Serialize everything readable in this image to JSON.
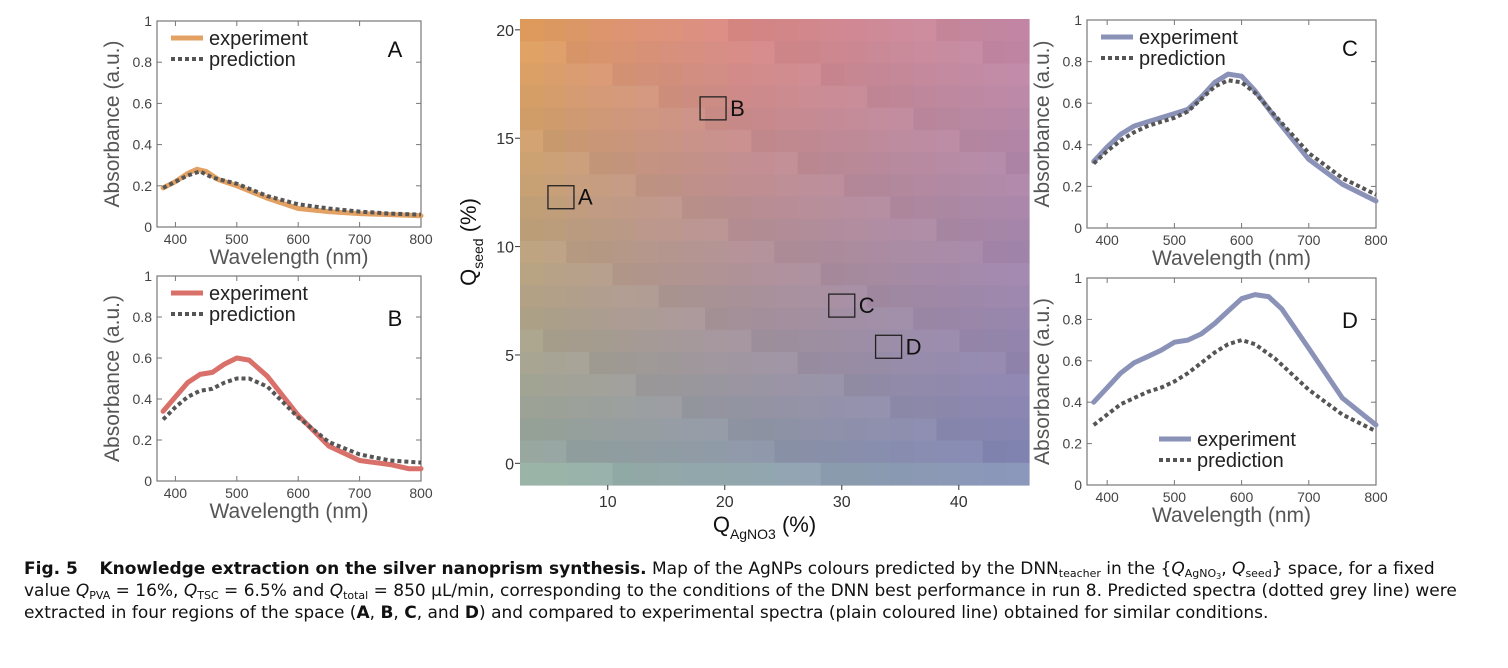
{
  "chart_data": [
    {
      "panel": "A",
      "type": "line",
      "xlabel": "Wavelength (nm)",
      "ylabel": "Absorbance (a.u.)",
      "xlim": [
        370,
        800
      ],
      "ylim": [
        0,
        1
      ],
      "xticks": [
        "400",
        "500",
        "600",
        "700",
        "800"
      ],
      "yticks": [
        "0",
        "0.2",
        "0.4",
        "0.6",
        "0.8",
        "1"
      ],
      "legend": [
        "experiment",
        "prediction"
      ],
      "legend_position": "top-left",
      "series": [
        {
          "name": "experiment",
          "color": "#e3a163",
          "x": [
            380,
            400,
            420,
            435,
            450,
            470,
            500,
            550,
            600,
            650,
            700,
            750,
            800
          ],
          "y": [
            0.19,
            0.22,
            0.26,
            0.28,
            0.27,
            0.23,
            0.2,
            0.14,
            0.09,
            0.075,
            0.065,
            0.06,
            0.055
          ]
        },
        {
          "name": "prediction",
          "color": "#555555",
          "x": [
            380,
            400,
            420,
            440,
            460,
            500,
            550,
            600,
            650,
            700,
            750,
            800
          ],
          "y": [
            0.19,
            0.22,
            0.25,
            0.27,
            0.24,
            0.21,
            0.15,
            0.11,
            0.09,
            0.075,
            0.065,
            0.06
          ]
        }
      ]
    },
    {
      "panel": "B",
      "type": "line",
      "xlabel": "Wavelength (nm)",
      "ylabel": "Absorbance (a.u.)",
      "xlim": [
        370,
        800
      ],
      "ylim": [
        0,
        1
      ],
      "xticks": [
        "400",
        "500",
        "600",
        "700",
        "800"
      ],
      "yticks": [
        "0",
        "0.2",
        "0.4",
        "0.6",
        "0.8",
        "1"
      ],
      "legend": [
        "experiment",
        "prediction"
      ],
      "legend_position": "top-left",
      "series": [
        {
          "name": "experiment",
          "color": "#d9706a",
          "x": [
            380,
            400,
            420,
            440,
            460,
            480,
            500,
            520,
            550,
            600,
            650,
            700,
            750,
            780,
            800
          ],
          "y": [
            0.34,
            0.41,
            0.48,
            0.52,
            0.53,
            0.57,
            0.6,
            0.59,
            0.51,
            0.32,
            0.17,
            0.1,
            0.08,
            0.06,
            0.06
          ]
        },
        {
          "name": "prediction",
          "color": "#555555",
          "x": [
            380,
            400,
            420,
            440,
            460,
            480,
            500,
            520,
            550,
            600,
            650,
            700,
            750,
            800
          ],
          "y": [
            0.3,
            0.36,
            0.41,
            0.44,
            0.45,
            0.48,
            0.5,
            0.5,
            0.46,
            0.31,
            0.19,
            0.13,
            0.1,
            0.09
          ]
        }
      ]
    },
    {
      "panel": "C",
      "type": "line",
      "xlabel": "Wavelength (nm)",
      "ylabel": "Absorbance (a.u.)",
      "xlim": [
        370,
        800
      ],
      "ylim": [
        0,
        1
      ],
      "xticks": [
        "400",
        "500",
        "600",
        "700",
        "800"
      ],
      "yticks": [
        "0",
        "0.2",
        "0.4",
        "0.6",
        "0.8",
        "1"
      ],
      "legend": [
        "experiment",
        "prediction"
      ],
      "legend_position": "top-left",
      "series": [
        {
          "name": "experiment",
          "color": "#8b92b8",
          "x": [
            380,
            400,
            420,
            440,
            460,
            480,
            500,
            520,
            540,
            560,
            580,
            600,
            620,
            650,
            700,
            750,
            800
          ],
          "y": [
            0.32,
            0.39,
            0.45,
            0.49,
            0.51,
            0.53,
            0.55,
            0.57,
            0.63,
            0.7,
            0.74,
            0.73,
            0.66,
            0.53,
            0.33,
            0.21,
            0.13
          ]
        },
        {
          "name": "prediction",
          "color": "#555555",
          "x": [
            380,
            400,
            420,
            440,
            460,
            480,
            500,
            520,
            540,
            560,
            580,
            600,
            620,
            650,
            700,
            750,
            800
          ],
          "y": [
            0.31,
            0.37,
            0.42,
            0.46,
            0.49,
            0.51,
            0.53,
            0.56,
            0.62,
            0.68,
            0.71,
            0.7,
            0.65,
            0.54,
            0.36,
            0.24,
            0.16
          ]
        }
      ]
    },
    {
      "panel": "D",
      "type": "line",
      "xlabel": "Wavelength (nm)",
      "ylabel": "Absorbance (a.u.)",
      "xlim": [
        370,
        800
      ],
      "ylim": [
        0,
        1
      ],
      "xticks": [
        "400",
        "500",
        "600",
        "700",
        "800"
      ],
      "yticks": [
        "0",
        "0.2",
        "0.4",
        "0.6",
        "0.8",
        "1"
      ],
      "legend": [
        "experiment",
        "prediction"
      ],
      "legend_position": "bottom-left",
      "series": [
        {
          "name": "experiment",
          "color": "#8b92b8",
          "x": [
            380,
            400,
            420,
            440,
            460,
            480,
            500,
            520,
            540,
            560,
            580,
            600,
            620,
            640,
            660,
            700,
            750,
            800
          ],
          "y": [
            0.4,
            0.47,
            0.54,
            0.59,
            0.62,
            0.65,
            0.69,
            0.7,
            0.73,
            0.78,
            0.84,
            0.9,
            0.92,
            0.91,
            0.85,
            0.66,
            0.42,
            0.29
          ]
        },
        {
          "name": "prediction",
          "color": "#555555",
          "x": [
            380,
            400,
            420,
            440,
            460,
            480,
            500,
            520,
            540,
            560,
            580,
            600,
            620,
            650,
            700,
            750,
            800
          ],
          "y": [
            0.29,
            0.34,
            0.39,
            0.42,
            0.45,
            0.47,
            0.5,
            0.54,
            0.59,
            0.64,
            0.68,
            0.7,
            0.68,
            0.61,
            0.46,
            0.34,
            0.26
          ]
        }
      ]
    },
    {
      "panel": "map",
      "type": "heatmap",
      "xlabel_main": "Q",
      "xlabel_sub": "AgNO3",
      "xlabel_unit": "(%)",
      "ylabel_main": "Q",
      "ylabel_sub": "seed",
      "ylabel_unit": "(%)",
      "xlim": [
        2.5,
        46
      ],
      "ylim": [
        -1,
        20.5
      ],
      "xticks": [
        "10",
        "20",
        "30",
        "40"
      ],
      "yticks": [
        "0",
        "5",
        "10",
        "15",
        "20"
      ],
      "colormap_corners": {
        "top_left": "#e3a05a",
        "top_right": "#c487a6",
        "bottom_left": "#8fa6a3",
        "bottom_right": "#7d84b4"
      },
      "regions": [
        {
          "label": "A",
          "x": 6,
          "y": 12.3
        },
        {
          "label": "B",
          "x": 19,
          "y": 16.4
        },
        {
          "label": "C",
          "x": 30,
          "y": 7.3
        },
        {
          "label": "D",
          "x": 34,
          "y": 5.4
        }
      ]
    }
  ],
  "caption": {
    "fig_label": "Fig. 5",
    "title": "Knowledge extraction on the silver nanoprism synthesis.",
    "text1": " Map of the AgNPs colours predicted by the DNN",
    "dnn_sub": "teacher",
    "text2": " in the {",
    "q": "Q",
    "agno_sub": "AgNO",
    "agno_subsub": "3",
    "comma": ", ",
    "seed_sub": "seed",
    "text3": "} space, for a fixed value ",
    "pva_sub": "PVA",
    "pva_val": " = 16%, ",
    "tsc_sub": "TSC",
    "tsc_val": " = 6.5% and ",
    "total_sub": "total",
    "total_val": " = 850 µL/min, corresponding to the conditions of the DNN best performance in run 8. Predicted spectra (dotted grey line) were extracted in four regions of the space (",
    "bA": "A",
    "sep1": ", ",
    "bB": "B",
    "sep2": ", ",
    "bC": "C",
    "sep3": ", and ",
    "bD": "D",
    "text4": ") and compared to experimental spectra (plain coloured line) obtained for similar conditions."
  }
}
